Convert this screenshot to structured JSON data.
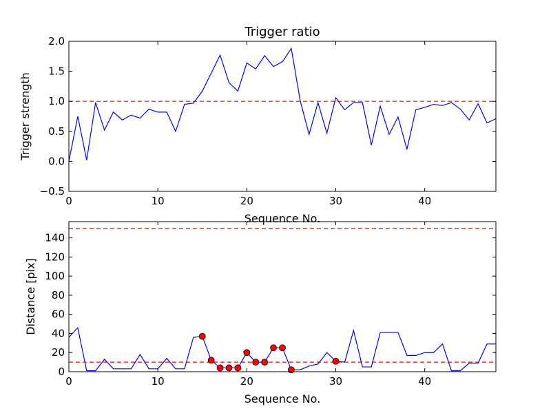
{
  "chart_data": [
    {
      "type": "line",
      "title": "Trigger ratio",
      "xlabel": "Sequence No.",
      "ylabel": "Trigger strength",
      "xlim": [
        0,
        48
      ],
      "ylim": [
        -0.5,
        2.0
      ],
      "xticks": [
        0,
        10,
        20,
        30,
        40
      ],
      "xtick_labels": [
        "0",
        "10",
        "20",
        "30",
        "40"
      ],
      "yticks": [
        -0.5,
        0.0,
        0.5,
        1.0,
        1.5,
        2.0
      ],
      "ytick_labels": [
        "−0.5",
        "0.0",
        "0.5",
        "1.0",
        "1.5",
        "2.0"
      ],
      "grid": false,
      "series": [
        {
          "color": "#0000ff",
          "x": [
            0,
            1,
            2,
            3,
            4,
            5,
            6,
            7,
            8,
            9,
            10,
            11,
            12,
            13,
            14,
            15,
            16,
            17,
            18,
            19,
            20,
            21,
            22,
            23,
            24,
            25,
            26,
            27,
            28,
            29,
            30,
            31,
            32,
            33,
            34,
            35,
            36,
            37,
            38,
            39,
            40,
            41,
            42,
            43,
            44,
            45,
            46,
            47,
            48
          ],
          "y": [
            0.0,
            0.75,
            0.02,
            0.98,
            0.52,
            0.82,
            0.69,
            0.77,
            0.72,
            0.87,
            0.82,
            0.82,
            0.5,
            0.95,
            0.97,
            1.17,
            1.47,
            1.77,
            1.31,
            1.17,
            1.64,
            1.54,
            1.76,
            1.58,
            1.66,
            1.88,
            1.01,
            0.45,
            0.98,
            0.47,
            1.06,
            0.86,
            0.98,
            0.98,
            0.27,
            0.92,
            0.45,
            0.74,
            0.2,
            0.86,
            0.9,
            0.95,
            0.93,
            0.98,
            0.87,
            0.69,
            0.96,
            0.64,
            0.71
          ]
        }
      ],
      "hlines": [
        {
          "y": 1.0,
          "color": "#ff0000",
          "style": "dashed"
        }
      ]
    },
    {
      "type": "line",
      "title": "",
      "xlabel": "Sequence No.",
      "ylabel": "Distance [pix]",
      "xlim": [
        0,
        48
      ],
      "ylim": [
        0,
        157
      ],
      "xticks": [
        0,
        10,
        20,
        30,
        40
      ],
      "xtick_labels": [
        "0",
        "10",
        "20",
        "30",
        "40"
      ],
      "yticks": [
        0,
        20,
        40,
        60,
        80,
        100,
        120,
        140
      ],
      "ytick_labels": [
        "0",
        "20",
        "40",
        "60",
        "80",
        "100",
        "120",
        "140"
      ],
      "grid": false,
      "series": [
        {
          "color": "#0000ff",
          "x": [
            0,
            1,
            2,
            3,
            4,
            5,
            6,
            7,
            8,
            9,
            10,
            11,
            12,
            13,
            14,
            15,
            16,
            17,
            18,
            19,
            20,
            21,
            22,
            23,
            24,
            25,
            26,
            27,
            28,
            29,
            30,
            31,
            32,
            33,
            34,
            35,
            36,
            37,
            38,
            39,
            40,
            41,
            42,
            43,
            44,
            45,
            46,
            47,
            48
          ],
          "y": [
            36,
            46,
            1,
            1,
            13,
            3,
            3,
            3,
            18,
            3,
            3,
            14,
            3,
            3,
            36,
            37,
            12,
            4,
            4,
            4,
            20,
            10,
            10,
            25,
            25,
            2,
            2,
            6,
            8,
            20,
            11,
            10,
            43,
            5,
            5,
            41,
            41,
            41,
            17,
            17,
            20,
            20,
            29,
            1,
            1,
            9,
            9,
            29,
            29
          ]
        }
      ],
      "markers": {
        "color": "#ff0000",
        "x": [
          15,
          16,
          17,
          18,
          19,
          20,
          21,
          22,
          23,
          24,
          25,
          30
        ],
        "y": [
          37,
          12,
          4,
          4,
          4,
          20,
          10,
          10,
          25,
          25,
          2,
          11
        ]
      },
      "hlines": [
        {
          "y": 150,
          "color": "#ff0000",
          "style": "dashed"
        },
        {
          "y": 10,
          "color": "#ff0000",
          "style": "dashed"
        }
      ]
    }
  ]
}
